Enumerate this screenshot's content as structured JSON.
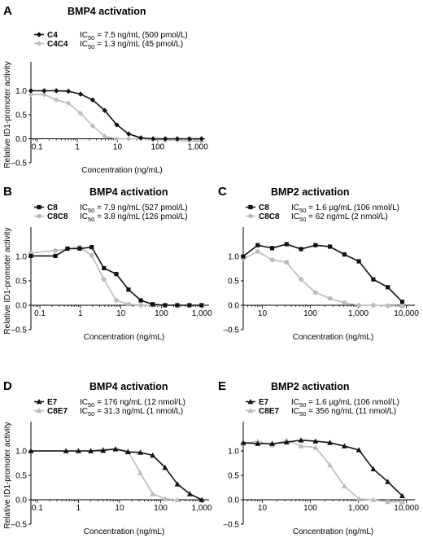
{
  "chart_data": [
    {
      "panel": "A",
      "type": "line",
      "title": "BMP4 activation",
      "xlabel": "Concentration (ng/mL)",
      "ylabel": "Relative ID1-promoter activity",
      "xscale": "log",
      "xlim": [
        0.07,
        1500
      ],
      "ylim": [
        -0.5,
        1.5
      ],
      "xticks": [
        0.1,
        1,
        10,
        100,
        1000
      ],
      "xtick_labels": [
        "0.1",
        "1",
        "10",
        "100",
        "1,000"
      ],
      "yticks": [
        -0.5,
        0,
        0.5,
        1.0
      ],
      "ytick_labels": [
        "–0.5",
        "0.0",
        "0.5",
        "1.0"
      ],
      "grid": false,
      "legend_position": "top-left",
      "series": [
        {
          "name": "C4",
          "ic50_text": "IC50 = 7.5 ng/mL (500 pmol/L)",
          "color": "#111111",
          "marker": "diamond",
          "x": [
            0.07,
            0.15,
            0.3,
            0.6,
            1.2,
            2.4,
            4.8,
            9.6,
            19,
            38,
            77,
            154,
            307,
            614,
            1229
          ],
          "y": [
            1.0,
            1.0,
            1.0,
            0.99,
            0.93,
            0.81,
            0.59,
            0.29,
            0.1,
            0.02,
            0.0,
            0.0,
            0.0,
            0.0,
            0.0
          ]
        },
        {
          "name": "C4C4",
          "ic50_text": "IC50 = 1.3 ng/mL (45 pmol/L)",
          "color": "#bbbbbb",
          "marker": "diamond",
          "x": [
            0.07,
            0.15,
            0.3,
            0.6,
            1.2,
            2.4,
            4.8,
            9.6,
            19,
            38,
            77,
            154,
            307,
            614,
            1229
          ],
          "y": [
            0.92,
            0.92,
            0.81,
            0.74,
            0.53,
            0.27,
            0.05,
            0.0,
            0.0,
            0.0,
            0.0,
            -0.03,
            -0.03,
            -0.04,
            -0.06
          ]
        }
      ]
    },
    {
      "panel": "B",
      "type": "line",
      "title": "BMP4 activation",
      "xlabel": "Concentration (ng/mL)",
      "ylabel": "Relative ID1-promoter activity",
      "xscale": "log",
      "xlim": [
        0.06,
        1500
      ],
      "ylim": [
        -0.5,
        1.5
      ],
      "xticks": [
        0.1,
        1,
        10,
        100,
        1000
      ],
      "xtick_labels": [
        "0.1",
        "1",
        "10",
        "100",
        "1,000"
      ],
      "yticks": [
        -0.5,
        0,
        0.5,
        1.0
      ],
      "ytick_labels": [
        "–0.5",
        "0.0",
        "0.5",
        "1.0"
      ],
      "grid": false,
      "legend_position": "top-left",
      "series": [
        {
          "name": "C8",
          "ic50_text": "IC50 = 7.9 ng/mL (527 pmol/L)",
          "color": "#111111",
          "marker": "square",
          "x": [
            0.06,
            0.24,
            0.48,
            0.96,
            1.9,
            3.8,
            7.7,
            15.4,
            31,
            61,
            123,
            246,
            492,
            983
          ],
          "y": [
            1.01,
            1.01,
            1.16,
            1.16,
            1.19,
            0.76,
            0.64,
            0.32,
            0.1,
            0.02,
            0.0,
            0.0,
            0.0,
            0.0
          ]
        },
        {
          "name": "C8C8",
          "ic50_text": "IC50 = 3.8 ng/mL (126 pmol/L)",
          "color": "#bbbbbb",
          "marker": "circle",
          "x": [
            0.06,
            0.24,
            0.48,
            0.96,
            1.9,
            3.8,
            7.7,
            15.4,
            31,
            61,
            123,
            246,
            492,
            983
          ],
          "y": [
            1.07,
            1.12,
            1.15,
            1.19,
            1.02,
            0.53,
            0.1,
            0.02,
            0.0,
            0.0,
            0.0,
            0.0,
            0.0,
            0.0
          ]
        }
      ]
    },
    {
      "panel": "C",
      "type": "line",
      "title": "BMP2 activation",
      "xlabel": "Concentration (ng/mL)",
      "ylabel": "",
      "xscale": "log",
      "xlim": [
        4,
        15000
      ],
      "ylim": [
        -0.5,
        1.5
      ],
      "xticks": [
        10,
        100,
        1000,
        10000
      ],
      "xtick_labels": [
        "10",
        "100",
        "1,000",
        "10,000"
      ],
      "yticks": [
        -0.5,
        0,
        0.5,
        1.0
      ],
      "ytick_labels": [
        "–0.5",
        "0.0",
        "0.5",
        "1.0"
      ],
      "grid": false,
      "legend_position": "top-left",
      "series": [
        {
          "name": "C8",
          "ic50_text": "IC50 = 1.6 µg/mL (106 nmol/L)",
          "color": "#111111",
          "marker": "square",
          "x": [
            4,
            8,
            16,
            32,
            64,
            128,
            256,
            512,
            1024,
            2048,
            4096,
            8192
          ],
          "y": [
            1.0,
            1.23,
            1.17,
            1.25,
            1.15,
            1.23,
            1.2,
            1.04,
            0.9,
            0.53,
            0.37,
            0.07
          ]
        },
        {
          "name": "C8C8",
          "ic50_text": "IC50 = 62 ng/mL (2 nmol/L)",
          "color": "#bbbbbb",
          "marker": "circle",
          "x": [
            4,
            8,
            16,
            32,
            64,
            128,
            256,
            512,
            1024,
            2048,
            4096,
            8192
          ],
          "y": [
            0.95,
            1.1,
            0.93,
            0.88,
            0.53,
            0.26,
            0.14,
            0.05,
            0.0,
            0.0,
            -0.01,
            -0.02
          ]
        }
      ]
    },
    {
      "panel": "D",
      "type": "line",
      "title": "BMP4 activation",
      "xlabel": "Concentration (ng/mL)",
      "ylabel": "Relative ID1-promoter activity",
      "xscale": "log",
      "xlim": [
        0.07,
        1500
      ],
      "ylim": [
        -0.5,
        1.5
      ],
      "xticks": [
        0.1,
        1,
        10,
        100,
        1000
      ],
      "xtick_labels": [
        "0.1",
        "1",
        "10",
        "100",
        "1,000"
      ],
      "yticks": [
        -0.5,
        0,
        0.5,
        1.0
      ],
      "ytick_labels": [
        "–0.5",
        "0.0",
        "0.5",
        "1.0"
      ],
      "grid": false,
      "legend_position": "top-left",
      "series": [
        {
          "name": "E7",
          "ic50_text": "IC50 = 176 ng/mL (12 nmol/L)",
          "color": "#111111",
          "marker": "triangle",
          "x": [
            0.07,
            0.5,
            1,
            2,
            4,
            8,
            16,
            32,
            64,
            128,
            256,
            512,
            1000
          ],
          "y": [
            1.0,
            1.0,
            1.0,
            1.0,
            1.01,
            1.04,
            0.98,
            0.97,
            0.91,
            0.66,
            0.32,
            0.12,
            0.0
          ]
        },
        {
          "name": "C8E7",
          "ic50_text": "IC50 = 31.3 ng/mL (1 nmol/L)",
          "color": "#bbbbbb",
          "marker": "triangle",
          "x": [
            0.07,
            0.5,
            1,
            2,
            4,
            8,
            16,
            32,
            64,
            128,
            256
          ],
          "y": [
            1.0,
            1.0,
            1.0,
            1.0,
            1.04,
            1.03,
            1.0,
            0.55,
            0.12,
            0.02,
            0.0
          ]
        }
      ]
    },
    {
      "panel": "E",
      "type": "line",
      "title": "BMP2 activation",
      "xlabel": "Concentration (ng/mL)",
      "ylabel": "",
      "xscale": "log",
      "xlim": [
        4,
        15000
      ],
      "ylim": [
        -0.5,
        1.5
      ],
      "xticks": [
        10,
        100,
        1000,
        10000
      ],
      "xtick_labels": [
        "10",
        "100",
        "1,000",
        "10,000"
      ],
      "yticks": [
        -0.5,
        0,
        0.5,
        1.0
      ],
      "ytick_labels": [
        "–0.5",
        "0.0",
        "0.5",
        "1.0"
      ],
      "grid": false,
      "legend_position": "top-left",
      "series": [
        {
          "name": "E7",
          "ic50_text": "IC50 = 1.6 µg/mL (106 nmol/L)",
          "color": "#111111",
          "marker": "triangle",
          "x": [
            4,
            8,
            16,
            32,
            64,
            128,
            256,
            512,
            1024,
            2048,
            4096,
            8192
          ],
          "y": [
            1.17,
            1.15,
            1.15,
            1.18,
            1.22,
            1.2,
            1.17,
            1.1,
            1.02,
            0.63,
            0.37,
            0.08
          ]
        },
        {
          "name": "C8E7",
          "ic50_text": "IC50 = 356 ng/mL (11 nmol/L)",
          "color": "#bbbbbb",
          "marker": "triangle",
          "x": [
            4,
            8,
            16,
            32,
            64,
            128,
            256,
            512,
            1024,
            2048,
            4096,
            8192
          ],
          "y": [
            1.15,
            1.2,
            1.12,
            1.22,
            1.1,
            1.07,
            0.71,
            0.28,
            0.02,
            0.0,
            -0.04,
            -0.04
          ]
        }
      ]
    }
  ]
}
